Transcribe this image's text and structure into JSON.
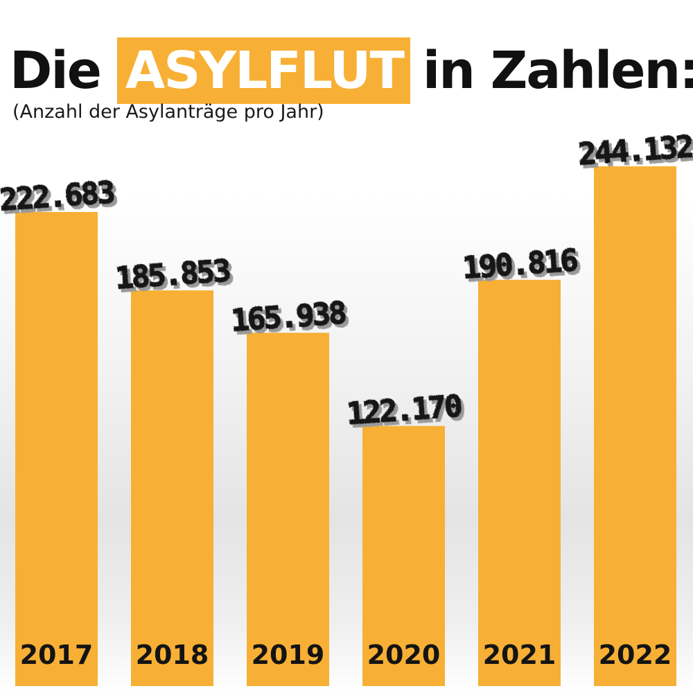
{
  "title": {
    "prefix": "Die",
    "highlight": "ASYLFLUT",
    "suffix": "in Zahlen:"
  },
  "subtitle": "(Anzahl der Asylanträge pro Jahr)",
  "colors": {
    "bar": "#f7b035",
    "text": "#141414",
    "shadow": "#9a9a9a"
  },
  "chart_data": {
    "type": "bar",
    "categories": [
      "2017",
      "2018",
      "2019",
      "2020",
      "2021",
      "2022"
    ],
    "values": [
      222683,
      185853,
      165938,
      122170,
      190816,
      244132
    ],
    "value_labels": [
      "222.683",
      "185.853",
      "165.938",
      "122.170",
      "190.816",
      "244.132"
    ],
    "title": "Die ASYLFLUT in Zahlen:",
    "subtitle": "(Anzahl der Asylanträge pro Jahr)",
    "xlabel": "",
    "ylabel": "",
    "ylim": [
      0,
      300000
    ],
    "grid": false,
    "legend": "none"
  }
}
